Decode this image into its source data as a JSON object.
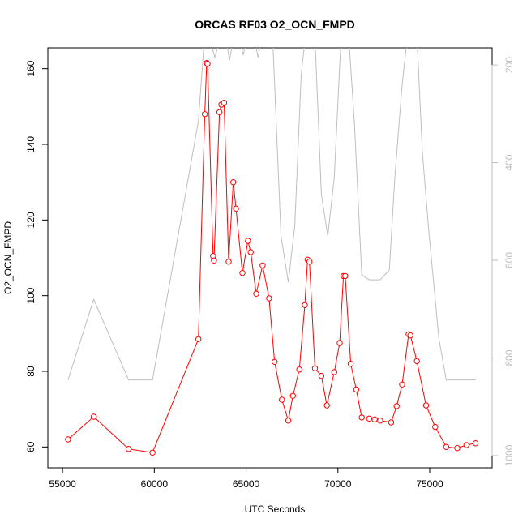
{
  "chart_data": {
    "type": "line",
    "title": "ORCAS RF03 O2_OCN_FMPD",
    "xlabel": "UTC Seconds",
    "ylabel": "O2_OCN_FMPD",
    "xlim": [
      54200,
      78400
    ],
    "ylim": [
      54.5,
      165.5
    ],
    "x_ticks": [
      55000,
      60000,
      65000,
      70000,
      75000
    ],
    "y_ticks": [
      60,
      80,
      100,
      120,
      140,
      160
    ],
    "y2_ticks": [
      200,
      400,
      600,
      800,
      1000
    ],
    "y2lim": [
      165,
      1025
    ],
    "y2_reversed": true,
    "grid": false,
    "colors": {
      "series": "#ff0000",
      "secondary": "#bebebe",
      "axis": "#000000"
    },
    "series": [
      {
        "marker": "open-circle",
        "color": "#ff0000",
        "x": [
          55300,
          56700,
          58600,
          59900,
          62400,
          62750,
          62850,
          62900,
          63200,
          63250,
          63550,
          63650,
          63800,
          64050,
          64300,
          64450,
          64800,
          65100,
          65250,
          65550,
          65900,
          66250,
          66550,
          66950,
          67300,
          67550,
          67900,
          68200,
          68350,
          68450,
          68750,
          69100,
          69400,
          69800,
          70100,
          70300,
          70400,
          70700,
          71000,
          71300,
          71700,
          72000,
          72300,
          72900,
          73200,
          73500,
          73850,
          73950,
          74300,
          74800,
          75300,
          75900,
          76500,
          77000,
          77500
        ],
        "y": [
          62,
          68,
          59.5,
          58.5,
          88.5,
          148,
          161.5,
          161.3,
          110.5,
          109.3,
          148.5,
          150.5,
          151,
          109,
          130,
          123,
          106,
          114.5,
          111.5,
          100.5,
          108,
          99.3,
          82.5,
          72.5,
          67,
          73.5,
          80.5,
          97.5,
          109.5,
          109,
          80.8,
          78.8,
          71,
          79.8,
          87.5,
          105.2,
          105.2,
          82,
          75.2,
          67.8,
          67.5,
          67.3,
          67,
          66.5,
          70.8,
          76.5,
          89.8,
          89.5,
          82.7,
          71,
          65.3,
          60,
          59.7,
          60.5,
          61
        ]
      },
      {
        "axis": "right",
        "color": "#bebebe",
        "x": [
          55300,
          56700,
          58600,
          59900,
          62400,
          62750,
          62850,
          63050,
          63300,
          63750,
          64100,
          64450,
          64850,
          65250,
          65650,
          66000,
          66400,
          66900,
          67300,
          67650,
          68000,
          68300,
          68700,
          69100,
          69450,
          69800,
          70150,
          70350,
          70550,
          70900,
          71300,
          71700,
          72300,
          72800,
          73100,
          73500,
          73850,
          74300,
          74600,
          74950,
          75500,
          75900,
          76500,
          77000,
          77500
        ],
        "y": [
          845,
          680,
          845,
          845,
          315,
          135,
          125,
          150,
          185,
          115,
          190,
          115,
          180,
          100,
          185,
          110,
          105,
          550,
          645,
          530,
          220,
          120,
          95,
          465,
          550,
          430,
          160,
          120,
          120,
          320,
          630,
          640,
          640,
          620,
          430,
          240,
          120,
          140,
          380,
          540,
          760,
          845,
          845,
          845,
          845
        ]
      }
    ]
  }
}
